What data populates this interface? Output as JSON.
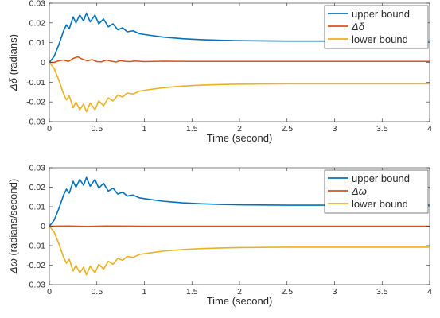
{
  "chart_data": [
    {
      "type": "line",
      "xlabel": "Time (second)",
      "ylabel_symbol": "Δδ",
      "ylabel_unit": "(radians)",
      "xlim": [
        0,
        4
      ],
      "ylim": [
        -0.03,
        0.03
      ],
      "x_ticks": [
        "0",
        "0.5",
        "1",
        "1.5",
        "2",
        "2.5",
        "3",
        "3.5",
        "4"
      ],
      "y_ticks": [
        "0.03",
        "0.02",
        "0.01",
        "0",
        "-0.01",
        "-0.02",
        "-0.03"
      ],
      "grid": false,
      "legend_position": "top-right",
      "series": [
        {
          "name": "upper bound",
          "color": "#0072BD",
          "points": [
            [
              0,
              0
            ],
            [
              0.05,
              0.003
            ],
            [
              0.1,
              0.009
            ],
            [
              0.15,
              0.016
            ],
            [
              0.18,
              0.019
            ],
            [
              0.21,
              0.017
            ],
            [
              0.25,
              0.023
            ],
            [
              0.28,
              0.02
            ],
            [
              0.32,
              0.024
            ],
            [
              0.36,
              0.021
            ],
            [
              0.39,
              0.025
            ],
            [
              0.43,
              0.0205
            ],
            [
              0.48,
              0.024
            ],
            [
              0.52,
              0.0195
            ],
            [
              0.57,
              0.022
            ],
            [
              0.62,
              0.018
            ],
            [
              0.67,
              0.0195
            ],
            [
              0.72,
              0.0165
            ],
            [
              0.77,
              0.0175
            ],
            [
              0.82,
              0.0155
            ],
            [
              0.88,
              0.016
            ],
            [
              0.95,
              0.0145
            ],
            [
              1.05,
              0.0138
            ],
            [
              1.2,
              0.0128
            ],
            [
              1.4,
              0.012
            ],
            [
              1.6,
              0.0115
            ],
            [
              1.8,
              0.0112
            ],
            [
              2.0,
              0.011
            ],
            [
              2.5,
              0.0108
            ],
            [
              3.0,
              0.0108
            ],
            [
              4.0,
              0.0108
            ]
          ]
        },
        {
          "name": "Δδ",
          "color": "#D95319",
          "points": [
            [
              0,
              0
            ],
            [
              0.05,
              0
            ],
            [
              0.1,
              0.0008
            ],
            [
              0.15,
              0.0012
            ],
            [
              0.2,
              0.0005
            ],
            [
              0.25,
              0.002
            ],
            [
              0.3,
              0.0028
            ],
            [
              0.35,
              0.0016
            ],
            [
              0.4,
              0.0008
            ],
            [
              0.45,
              0.0014
            ],
            [
              0.5,
              0.0004
            ],
            [
              0.55,
              0.0003
            ],
            [
              0.6,
              0.0012
            ],
            [
              0.65,
              0.0006
            ],
            [
              0.7,
              0.0002
            ],
            [
              0.75,
              0.0009
            ],
            [
              0.8,
              0.0005
            ],
            [
              0.85,
              0.0004
            ],
            [
              0.9,
              0.0007
            ],
            [
              1.0,
              0.0004
            ],
            [
              1.2,
              0.0006
            ],
            [
              1.5,
              0.0005
            ],
            [
              2.0,
              0.0005
            ],
            [
              4.0,
              0.0005
            ]
          ]
        },
        {
          "name": "lower bound",
          "color": "#EDB120",
          "points": [
            [
              0,
              0
            ],
            [
              0.05,
              -0.003
            ],
            [
              0.1,
              -0.009
            ],
            [
              0.15,
              -0.016
            ],
            [
              0.18,
              -0.019
            ],
            [
              0.21,
              -0.017
            ],
            [
              0.25,
              -0.023
            ],
            [
              0.28,
              -0.02
            ],
            [
              0.32,
              -0.024
            ],
            [
              0.36,
              -0.021
            ],
            [
              0.39,
              -0.025
            ],
            [
              0.43,
              -0.0205
            ],
            [
              0.48,
              -0.024
            ],
            [
              0.52,
              -0.0195
            ],
            [
              0.57,
              -0.022
            ],
            [
              0.62,
              -0.018
            ],
            [
              0.67,
              -0.0195
            ],
            [
              0.72,
              -0.0165
            ],
            [
              0.77,
              -0.0175
            ],
            [
              0.82,
              -0.0155
            ],
            [
              0.88,
              -0.016
            ],
            [
              0.95,
              -0.0145
            ],
            [
              1.05,
              -0.0138
            ],
            [
              1.2,
              -0.0128
            ],
            [
              1.4,
              -0.012
            ],
            [
              1.6,
              -0.0115
            ],
            [
              1.8,
              -0.0112
            ],
            [
              2.0,
              -0.011
            ],
            [
              2.5,
              -0.0108
            ],
            [
              3.0,
              -0.0108
            ],
            [
              4.0,
              -0.0108
            ]
          ]
        }
      ]
    },
    {
      "type": "line",
      "xlabel": "Time (second)",
      "ylabel_symbol": "Δω",
      "ylabel_unit": "(radians/second)",
      "xlim": [
        0,
        4
      ],
      "ylim": [
        -0.03,
        0.03
      ],
      "x_ticks": [
        "0",
        "0.5",
        "1",
        "1.5",
        "2",
        "2.5",
        "3",
        "3.5",
        "4"
      ],
      "y_ticks": [
        "0.03",
        "0.02",
        "0.01",
        "0",
        "-0.01",
        "-0.02",
        "-0.03"
      ],
      "grid": false,
      "legend_position": "top-right",
      "series": [
        {
          "name": "upper bound",
          "color": "#0072BD",
          "points": [
            [
              0,
              0
            ],
            [
              0.05,
              0.003
            ],
            [
              0.1,
              0.009
            ],
            [
              0.15,
              0.016
            ],
            [
              0.18,
              0.019
            ],
            [
              0.21,
              0.017
            ],
            [
              0.25,
              0.023
            ],
            [
              0.28,
              0.02
            ],
            [
              0.32,
              0.024
            ],
            [
              0.36,
              0.021
            ],
            [
              0.39,
              0.025
            ],
            [
              0.43,
              0.0205
            ],
            [
              0.48,
              0.024
            ],
            [
              0.52,
              0.0195
            ],
            [
              0.57,
              0.022
            ],
            [
              0.62,
              0.018
            ],
            [
              0.67,
              0.0195
            ],
            [
              0.72,
              0.0165
            ],
            [
              0.77,
              0.0175
            ],
            [
              0.82,
              0.0155
            ],
            [
              0.88,
              0.016
            ],
            [
              0.95,
              0.0145
            ],
            [
              1.05,
              0.0138
            ],
            [
              1.2,
              0.0128
            ],
            [
              1.4,
              0.012
            ],
            [
              1.6,
              0.0115
            ],
            [
              1.8,
              0.0112
            ],
            [
              2.0,
              0.011
            ],
            [
              2.5,
              0.0108
            ],
            [
              3.0,
              0.0108
            ],
            [
              4.0,
              0.0108
            ]
          ]
        },
        {
          "name": "Δω",
          "color": "#D95319",
          "points": [
            [
              0,
              0
            ],
            [
              0.2,
              0.0001
            ],
            [
              0.4,
              -0.0001
            ],
            [
              0.6,
              0.0001
            ],
            [
              1.0,
              0
            ],
            [
              2.0,
              0
            ],
            [
              4.0,
              0
            ]
          ]
        },
        {
          "name": "lower bound",
          "color": "#EDB120",
          "points": [
            [
              0,
              0
            ],
            [
              0.05,
              -0.003
            ],
            [
              0.1,
              -0.009
            ],
            [
              0.15,
              -0.016
            ],
            [
              0.18,
              -0.019
            ],
            [
              0.21,
              -0.017
            ],
            [
              0.25,
              -0.023
            ],
            [
              0.28,
              -0.02
            ],
            [
              0.32,
              -0.024
            ],
            [
              0.36,
              -0.021
            ],
            [
              0.39,
              -0.025
            ],
            [
              0.43,
              -0.0205
            ],
            [
              0.48,
              -0.024
            ],
            [
              0.52,
              -0.0195
            ],
            [
              0.57,
              -0.022
            ],
            [
              0.62,
              -0.018
            ],
            [
              0.67,
              -0.0195
            ],
            [
              0.72,
              -0.0165
            ],
            [
              0.77,
              -0.0175
            ],
            [
              0.82,
              -0.0155
            ],
            [
              0.88,
              -0.016
            ],
            [
              0.95,
              -0.0145
            ],
            [
              1.05,
              -0.0138
            ],
            [
              1.2,
              -0.0128
            ],
            [
              1.4,
              -0.012
            ],
            [
              1.6,
              -0.0115
            ],
            [
              1.8,
              -0.0112
            ],
            [
              2.0,
              -0.011
            ],
            [
              2.5,
              -0.0108
            ],
            [
              3.0,
              -0.0108
            ],
            [
              4.0,
              -0.0108
            ]
          ]
        }
      ]
    }
  ]
}
